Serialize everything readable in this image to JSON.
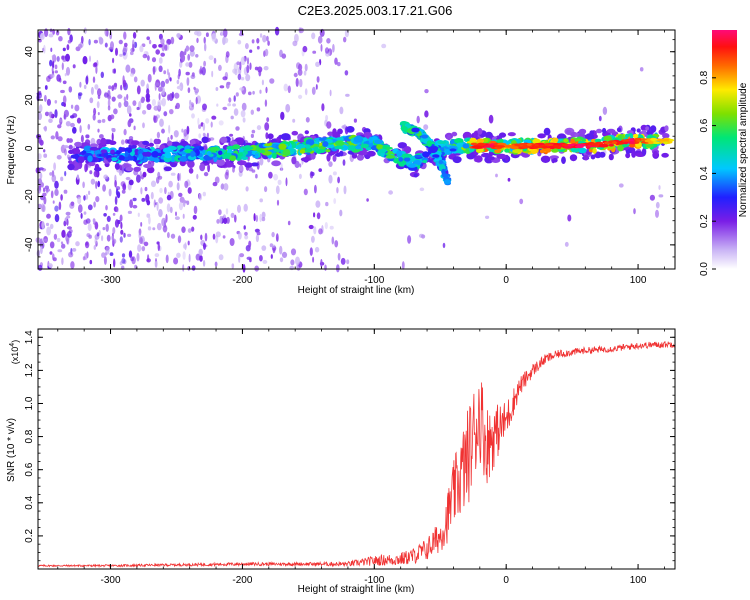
{
  "title": "C2E3.2025.003.17.21.G06",
  "colors": {
    "snr_line": "#f03232",
    "axis": "#000000"
  },
  "chart_data": [
    {
      "type": "heatmap",
      "xlabel": "Height of straight line (km)",
      "ylabel": "Frequency (Hz)",
      "xlim": [
        -355,
        128
      ],
      "ylim": [
        -50,
        49
      ],
      "x_ticks": [
        -300,
        -200,
        -100,
        0,
        100
      ],
      "y_ticks": [
        -40,
        -20,
        0,
        20,
        40
      ],
      "x_tick_labels": [
        "-300",
        "-200",
        "-100",
        "0",
        "100"
      ],
      "y_tick_labels": [
        "-40",
        "-20",
        "0",
        "20",
        "40"
      ],
      "colorbar": {
        "label": "Normalized spectral amplitude",
        "range": [
          0,
          1
        ],
        "ticks": [
          0.0,
          0.2,
          0.4,
          0.6,
          0.8
        ],
        "tick_labels": [
          "0.0",
          "0.2",
          "0.4",
          "0.6",
          "0.8"
        ],
        "colormap": "rainbow white-purple-blue-cyan-green-yellow-red-magenta"
      },
      "ridge": [
        {
          "x": -330,
          "f": -2,
          "a": 0.35
        },
        {
          "x": -300,
          "f": -3,
          "a": 0.4
        },
        {
          "x": -270,
          "f": -3,
          "a": 0.45
        },
        {
          "x": -240,
          "f": -2,
          "a": 0.5
        },
        {
          "x": -210,
          "f": -2,
          "a": 0.55
        },
        {
          "x": -180,
          "f": -1,
          "a": 0.6
        },
        {
          "x": -150,
          "f": 1,
          "a": 0.62
        },
        {
          "x": -120,
          "f": 2,
          "a": 0.65
        },
        {
          "x": -100,
          "f": 2,
          "a": 0.6
        },
        {
          "x": -85,
          "f": -3,
          "a": 0.55
        },
        {
          "x": -70,
          "f": -6,
          "a": 0.5
        },
        {
          "x": -50,
          "f": 0,
          "a": 0.5
        },
        {
          "x": -35,
          "f": 1,
          "a": 0.6
        },
        {
          "x": -15,
          "f": 1,
          "a": 0.85
        },
        {
          "x": 0,
          "f": 1,
          "a": 0.7
        },
        {
          "x": 20,
          "f": 1,
          "a": 0.75
        },
        {
          "x": 40,
          "f": 1,
          "a": 0.8
        },
        {
          "x": 60,
          "f": 1,
          "a": 0.8
        },
        {
          "x": 80,
          "f": 2,
          "a": 0.75
        },
        {
          "x": 95,
          "f": 3,
          "a": 0.8
        },
        {
          "x": 115,
          "f": 3,
          "a": 0.6
        }
      ],
      "branch": [
        {
          "x": -78,
          "f": 9,
          "a": 0.55
        },
        {
          "x": -65,
          "f": 6,
          "a": 0.55
        },
        {
          "x": -55,
          "f": 0,
          "a": 0.5
        },
        {
          "x": -48,
          "f": -8,
          "a": 0.45
        },
        {
          "x": -44,
          "f": -14,
          "a": 0.4
        }
      ]
    },
    {
      "type": "line",
      "xlabel": "Height of straight line (km)",
      "ylabel": "SNR (10 * v/v)",
      "y_scale_label": "(x10",
      "y_scale_exponent": "4",
      "y_scale_suffix": ")",
      "xlim": [
        -355,
        128
      ],
      "ylim": [
        0,
        1.45
      ],
      "x_ticks": [
        -300,
        -200,
        -100,
        0,
        100
      ],
      "y_ticks": [
        0.2,
        0.4,
        0.6,
        0.8,
        1.0,
        1.2,
        1.4
      ],
      "x_tick_labels": [
        "-300",
        "-200",
        "-100",
        "0",
        "100"
      ],
      "y_tick_labels": [
        "0.2",
        "0.4",
        "0.6",
        "0.8",
        "1.0",
        "1.2",
        "1.4"
      ],
      "series": [
        {
          "x": [
            -355,
            -300,
            -250,
            -200,
            -150,
            -120,
            -100,
            -80,
            -70,
            -60,
            -50,
            -45,
            -40,
            -35,
            -30,
            -25,
            -20,
            -15,
            -10,
            -5,
            0,
            10,
            20,
            30,
            40,
            60,
            80,
            100,
            128
          ],
          "y": [
            0.02,
            0.02,
            0.025,
            0.03,
            0.03,
            0.03,
            0.05,
            0.06,
            0.08,
            0.12,
            0.2,
            0.3,
            0.45,
            0.55,
            0.65,
            0.8,
            0.95,
            0.75,
            0.8,
            0.85,
            0.9,
            1.1,
            1.2,
            1.27,
            1.3,
            1.32,
            1.33,
            1.35,
            1.36
          ],
          "noise": [
            0.005,
            0.006,
            0.008,
            0.01,
            0.01,
            0.015,
            0.03,
            0.04,
            0.05,
            0.07,
            0.1,
            0.15,
            0.2,
            0.25,
            0.3,
            0.3,
            0.3,
            0.25,
            0.2,
            0.15,
            0.12,
            0.06,
            0.04,
            0.03,
            0.025,
            0.02,
            0.02,
            0.02,
            0.02
          ]
        }
      ]
    }
  ]
}
